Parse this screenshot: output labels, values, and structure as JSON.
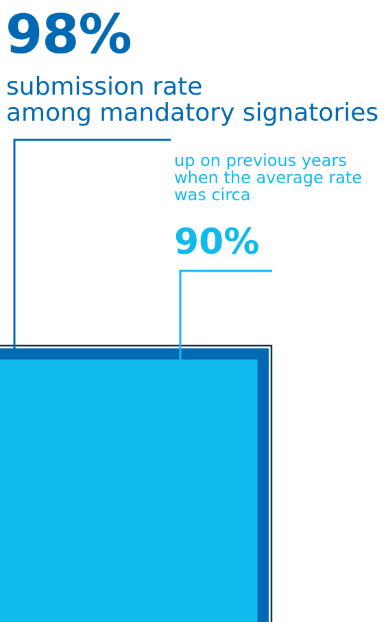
{
  "headline": {
    "value_text": "98%",
    "label_lines": [
      "submission rate",
      "among mandatory signatories"
    ]
  },
  "comparison": {
    "label_lines": [
      "up on previous years",
      "when the average rate",
      "was circa"
    ],
    "value_text": "90%"
  },
  "colors": {
    "primary": "#0069b4",
    "secondary": "#10b9ee",
    "outline": "#0e2a4e"
  },
  "chart_data": {
    "type": "bar",
    "categories": [
      "submission rate among mandatory signatories",
      "previous years average rate"
    ],
    "values": [
      98,
      90
    ],
    "unit": "%",
    "ylim": [
      0,
      100
    ]
  }
}
